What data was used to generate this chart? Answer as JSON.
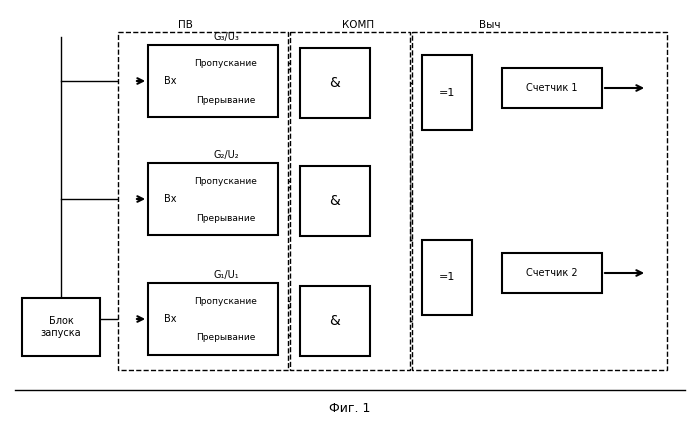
{
  "title": "Фиг. 1",
  "labels": {
    "pv": "ПВ",
    "komp": "КОМП",
    "vych": "Выч",
    "blok": "Блок\nзапуска",
    "schetchik1": "Счетчик 1",
    "schetchik2": "Счетчик 2",
    "and_sym": "&",
    "or_sym": "=1",
    "g3u3": "G₃/U₃",
    "g2u2": "G₂/U₂",
    "g1u1": "G₁/U₁",
    "propuskanie": "Пропускание",
    "preryvanie": "Прерывание",
    "vx": "Bх"
  },
  "colors": {
    "box": "#000000",
    "bg": "#ffffff",
    "dashed": "#000000",
    "text": "#000000"
  },
  "fig_width": 6.99,
  "fig_height": 4.25,
  "dpi": 100
}
